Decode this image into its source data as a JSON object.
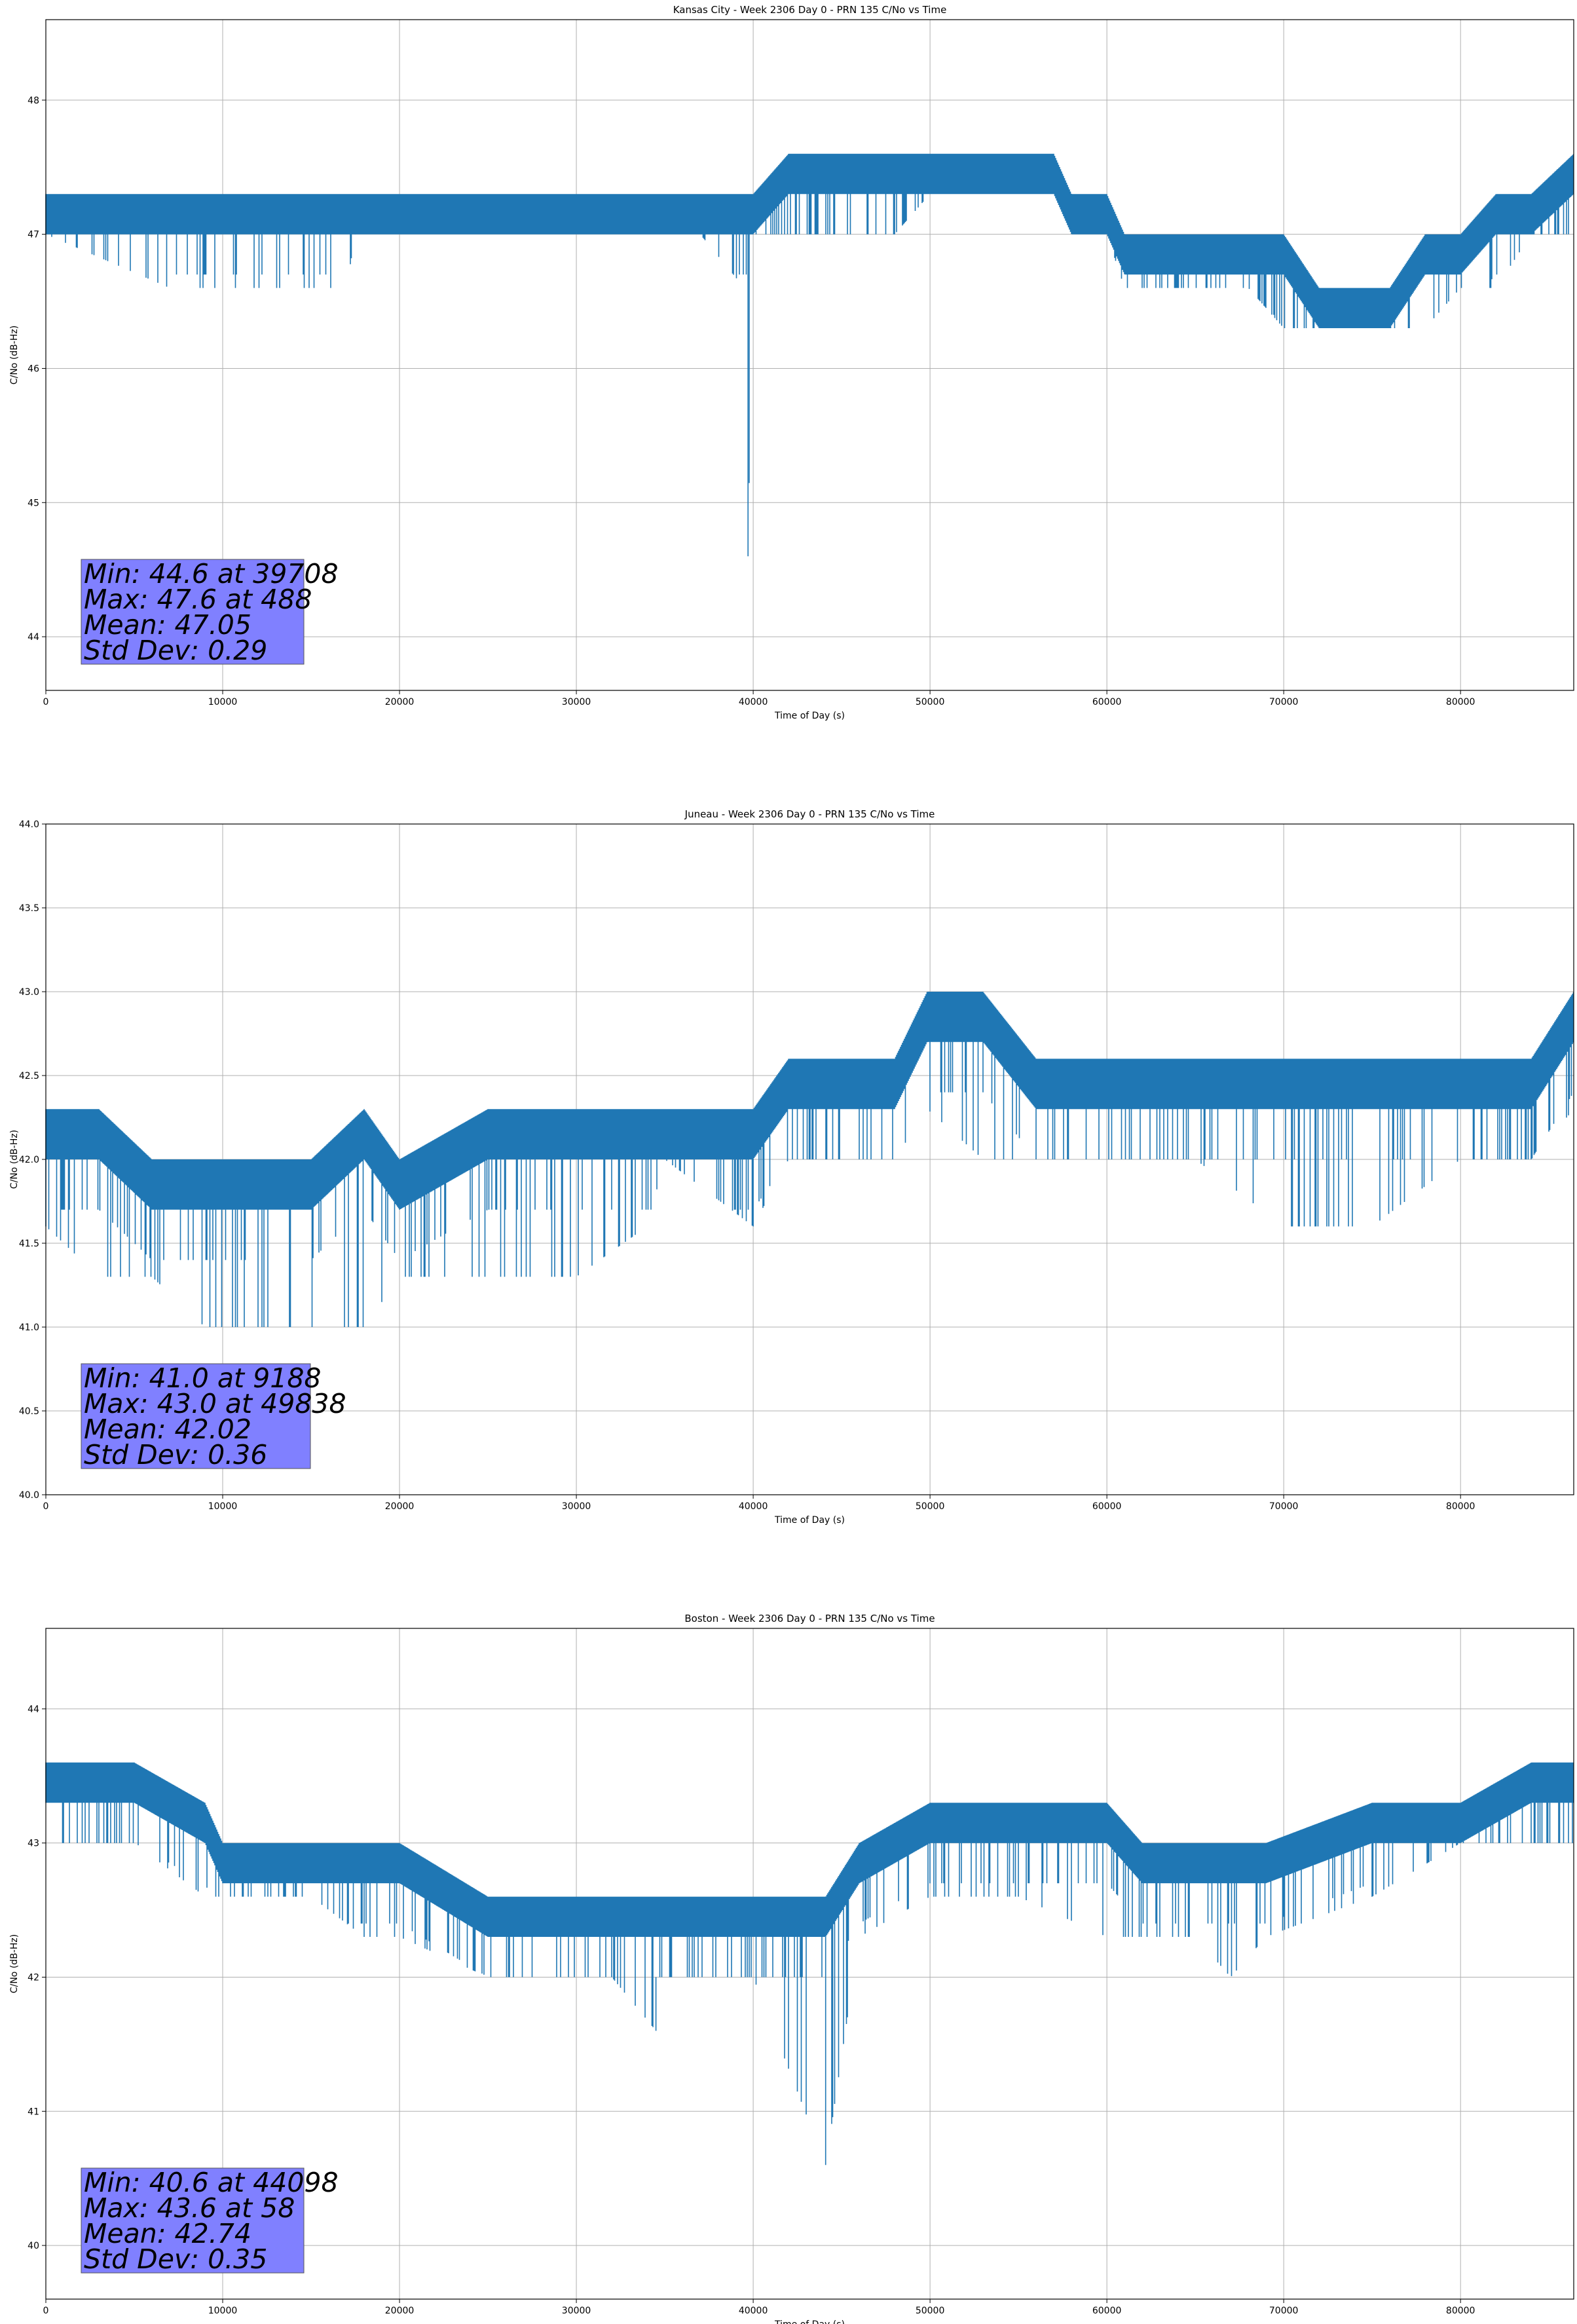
{
  "figure": {
    "line_color": "#1f77b4",
    "grid_color": "#b0b0b0",
    "stats_box_color": "#8080ff"
  },
  "chart_data": [
    {
      "type": "line",
      "title": "Kansas City - Week 2306 Day 0 - PRN 135 C/No vs Time",
      "xlabel": "Time of Day (s)",
      "ylabel": "C/No (dB-Hz)",
      "xlim": [
        0,
        86400
      ],
      "ylim": [
        43.6,
        48.6
      ],
      "xticks": [
        0,
        10000,
        20000,
        30000,
        40000,
        50000,
        60000,
        70000,
        80000
      ],
      "yticks": [
        44,
        45,
        46,
        47,
        48
      ],
      "ytick_decimals": 0,
      "grid": true,
      "quantum": 0.3,
      "stats": [
        "Min: 44.6 at 39708",
        "Max: 47.6 at 488",
        "Mean: 47.05",
        "Std Dev: 0.29"
      ],
      "series": [
        {
          "x": [
            0,
            7000,
            7500,
            17000,
            17500,
            25000,
            30000,
            35000,
            37000,
            39500,
            39708,
            40000,
            42000,
            48000,
            50000,
            57000,
            58000,
            60000,
            61000,
            65000,
            68000,
            70000,
            72000,
            76000,
            78000,
            80000,
            82000,
            84000,
            86400
          ],
          "lo": [
            47.0,
            46.6,
            46.6,
            46.6,
            47.0,
            47.0,
            47.0,
            47.0,
            47.0,
            46.6,
            44.6,
            47.0,
            47.0,
            47.0,
            47.3,
            47.3,
            47.0,
            47.0,
            46.6,
            46.6,
            46.6,
            46.3,
            46.3,
            46.3,
            46.3,
            46.6,
            46.6,
            47.0,
            47.0
          ],
          "hi": [
            47.3,
            47.3,
            47.3,
            47.3,
            47.3,
            47.3,
            47.3,
            47.3,
            47.3,
            47.3,
            47.3,
            47.3,
            47.6,
            47.6,
            47.6,
            47.6,
            47.3,
            47.3,
            47.0,
            47.0,
            47.0,
            47.0,
            46.6,
            46.6,
            47.0,
            47.0,
            47.3,
            47.3,
            47.6
          ]
        }
      ]
    },
    {
      "type": "line",
      "title": "Juneau - Week 2306 Day 0 - PRN 135 C/No vs Time",
      "xlabel": "Time of Day (s)",
      "ylabel": "C/No (dB-Hz)",
      "xlim": [
        0,
        86400
      ],
      "ylim": [
        40.0,
        44.0
      ],
      "xticks": [
        0,
        10000,
        20000,
        30000,
        40000,
        50000,
        60000,
        70000,
        80000
      ],
      "yticks": [
        40.0,
        40.5,
        41.0,
        41.5,
        42.0,
        42.5,
        43.0,
        43.5,
        44.0
      ],
      "ytick_decimals": 1,
      "grid": true,
      "quantum": 0.3,
      "stats": [
        "Min: 41.0 at 9188",
        "Max: 43.0 at 49838",
        "Mean: 42.02",
        "Std Dev: 0.36"
      ],
      "series": [
        {
          "x": [
            0,
            3000,
            6000,
            9000,
            9188,
            12000,
            15000,
            18000,
            20000,
            25000,
            28000,
            30000,
            34000,
            35000,
            40000,
            42000,
            45000,
            48000,
            49838,
            53000,
            56000,
            60000,
            65000,
            70000,
            75000,
            80000,
            84000,
            86400
          ],
          "lo": [
            41.6,
            41.3,
            41.3,
            41.0,
            41.0,
            41.0,
            41.0,
            41.0,
            41.3,
            41.3,
            41.3,
            41.3,
            41.6,
            42.0,
            41.6,
            42.0,
            42.0,
            42.0,
            42.3,
            42.0,
            42.0,
            42.0,
            42.0,
            41.6,
            41.6,
            42.0,
            42.0,
            42.3
          ],
          "hi": [
            42.3,
            42.3,
            42.0,
            42.0,
            42.0,
            42.0,
            42.0,
            42.3,
            42.0,
            42.3,
            42.3,
            42.3,
            42.3,
            42.3,
            42.3,
            42.6,
            42.6,
            42.6,
            43.0,
            43.0,
            42.6,
            42.6,
            42.6,
            42.6,
            42.6,
            42.6,
            42.6,
            43.0
          ]
        }
      ]
    },
    {
      "type": "line",
      "title": "Boston - Week 2306 Day 0 - PRN 135 C/No vs Time",
      "xlabel": "Time of Day (s)",
      "ylabel": "C/No (dB-Hz)",
      "xlim": [
        0,
        86400
      ],
      "ylim": [
        39.6,
        44.6
      ],
      "xticks": [
        0,
        10000,
        20000,
        30000,
        40000,
        50000,
        60000,
        70000,
        80000
      ],
      "yticks": [
        40,
        41,
        42,
        43,
        44
      ],
      "ytick_decimals": 0,
      "grid": true,
      "quantum": 0.3,
      "stats": [
        "Min: 40.6 at 44098",
        "Max: 43.6 at 58",
        "Mean: 42.74",
        "Std Dev: 0.35"
      ],
      "series": [
        {
          "x": [
            0,
            58,
            5000,
            9000,
            10000,
            15000,
            18000,
            20000,
            25000,
            29000,
            32000,
            34500,
            35000,
            40000,
            44098,
            46000,
            50000,
            55000,
            60000,
            62000,
            65000,
            67000,
            69000,
            75000,
            80000,
            84000,
            86400
          ],
          "lo": [
            43.0,
            43.0,
            43.0,
            42.6,
            42.6,
            42.6,
            42.3,
            42.3,
            42.0,
            42.0,
            42.0,
            41.6,
            42.0,
            42.0,
            40.6,
            42.3,
            42.6,
            42.6,
            42.3,
            42.3,
            42.3,
            42.0,
            42.3,
            42.6,
            43.0,
            43.0,
            43.0
          ],
          "hi": [
            43.6,
            43.6,
            43.6,
            43.3,
            43.0,
            43.0,
            43.0,
            43.0,
            42.6,
            42.6,
            42.6,
            42.6,
            42.6,
            42.6,
            42.6,
            43.0,
            43.3,
            43.3,
            43.3,
            43.0,
            43.0,
            43.0,
            43.0,
            43.3,
            43.3,
            43.6,
            43.6
          ]
        }
      ]
    }
  ]
}
